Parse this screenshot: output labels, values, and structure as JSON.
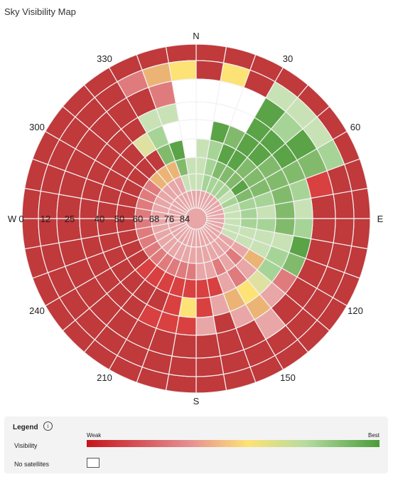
{
  "title": "Sky Visibility Map",
  "compass": {
    "north": "N",
    "east": "E",
    "south": "S",
    "west": "W"
  },
  "azimuth_labels": [
    "30",
    "60",
    "120",
    "150",
    "210",
    "240",
    "300",
    "330"
  ],
  "elevation_labels": [
    "0",
    "12",
    "25",
    "40",
    "50",
    "60",
    "68",
    "76",
    "84"
  ],
  "legend": {
    "title": "Legend",
    "info_icon": "info-icon",
    "visibility_label": "Visibility",
    "weak_label": "Weak",
    "best_label": "Best",
    "no_satellites_label": "No satellites",
    "gradient_colors": [
      "#c4161c",
      "#e58f92",
      "#fde275",
      "#b6dba0",
      "#4a9c38"
    ]
  },
  "palette": {
    "0": "#c0393b",
    "1": "#d94040",
    "2": "#e07b7d",
    "3": "#e9a6a7",
    "4": "#ebb474",
    "5": "#fde275",
    "6": "#dfe1a0",
    "7": "#c8e2b6",
    "8": "#a6d496",
    "9": "#82ba6c",
    "10": "#5aa346",
    "w": "#ffffff"
  },
  "sky_grid": [
    [
      "0",
      "0",
      "0",
      "0",
      "0",
      "0",
      "0",
      "0",
      "0",
      "0",
      "0",
      "0",
      "0",
      "0",
      "0",
      "0",
      "0",
      "0",
      "0",
      "0",
      "0",
      "0",
      "0",
      "0",
      "0",
      "0",
      "0",
      "0",
      "0",
      "0",
      "0",
      "0",
      "0",
      "0",
      "0",
      "0"
    ],
    [
      "0",
      "5",
      "0",
      "7",
      "7",
      "7",
      "8",
      "0",
      "0",
      "0",
      "0",
      "0",
      "0",
      "0",
      "0",
      "0",
      "0",
      "0",
      "0",
      "0",
      "0",
      "0",
      "0",
      "0",
      "0",
      "0",
      "0",
      "0",
      "0",
      "0",
      "0",
      "0",
      "0",
      "2",
      "4",
      "5"
    ],
    [
      "w",
      "w",
      "w",
      "10",
      "8",
      "10",
      "9",
      "1",
      "0",
      "0",
      "0",
      "0",
      "0",
      "0",
      "3",
      "0",
      "0",
      "0",
      "0",
      "0",
      "0",
      "0",
      "0",
      "0",
      "0",
      "0",
      "0",
      "0",
      "0",
      "0",
      "0",
      "0",
      "0",
      "0",
      "2",
      "w"
    ],
    [
      "w",
      "w",
      "w",
      "10",
      "10",
      "10",
      "9",
      "8",
      "7",
      "8",
      "10",
      "9",
      "2",
      "3",
      "4",
      "3",
      "0",
      "3",
      "1",
      "1",
      "1",
      "0",
      "0",
      "0",
      "0",
      "0",
      "0",
      "0",
      "0",
      "0",
      "0",
      "0",
      "0",
      "7",
      "7",
      "w"
    ],
    [
      "w",
      "10",
      "9",
      "10",
      "10",
      "9",
      "9",
      "9",
      "9",
      "9",
      "7",
      "8",
      "8",
      "6",
      "5",
      "4",
      "3",
      "1",
      "5",
      "1",
      "0",
      "0",
      "0",
      "0",
      "0",
      "0",
      "0",
      "0",
      "0",
      "0",
      "0",
      "0",
      "6",
      "8",
      "w",
      "w"
    ],
    [
      "7",
      "8",
      "10",
      "10",
      "9",
      "9",
      "9",
      "8",
      "7",
      "8",
      "7",
      "7",
      "4",
      "3",
      "2",
      "3",
      "1",
      "1",
      "1",
      "1",
      "1",
      "1",
      "1",
      "0",
      "0",
      "0",
      "0",
      "0",
      "0",
      "0",
      "0",
      "0",
      "0",
      "9",
      "10",
      "w"
    ],
    [
      "7",
      "8",
      "9",
      "9",
      "9",
      "10",
      "9",
      "8",
      "8",
      "8",
      "7",
      "7",
      "3",
      "2",
      "3",
      "2",
      "3",
      "3",
      "2",
      "2",
      "2",
      "2",
      "2",
      "2",
      "2",
      "2",
      "2",
      "2",
      "2",
      "2",
      "2",
      "4",
      "4",
      "4",
      "9",
      "7"
    ],
    [
      "7",
      "8",
      "8",
      "8",
      "8",
      "7",
      "8",
      "7",
      "7",
      "7",
      "7",
      "7",
      "3",
      "3",
      "3",
      "3",
      "3",
      "3",
      "3",
      "3",
      "3",
      "3",
      "3",
      "3",
      "3",
      "3",
      "3",
      "3",
      "3",
      "3",
      "3",
      "3",
      "3",
      "3",
      "7",
      "7"
    ],
    [
      "3",
      "3",
      "3",
      "3",
      "3",
      "3",
      "3",
      "3",
      "3",
      "3",
      "3",
      "3",
      "3",
      "3",
      "3",
      "3",
      "3",
      "3",
      "3",
      "3",
      "3",
      "3",
      "3",
      "3",
      "3",
      "3",
      "3",
      "3",
      "3",
      "3",
      "3",
      "3",
      "3",
      "3",
      "3",
      "3"
    ]
  ]
}
